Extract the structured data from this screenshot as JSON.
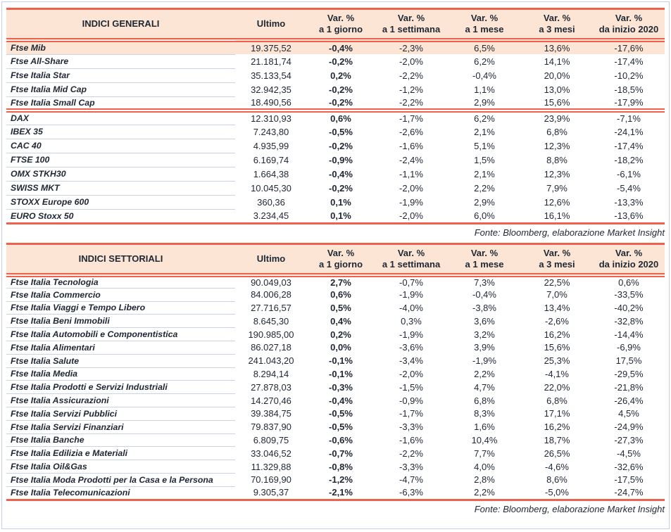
{
  "colors": {
    "accent_salmon": "#EE614C",
    "header_and_highlight_bg": "#FCE5D4",
    "text": "#1E2733",
    "row_divider": "#C9D3E2",
    "panel_border": "#C5D0E8"
  },
  "tables": [
    {
      "title": "INDICI GENERALI",
      "ultimo_label": "Ultimo",
      "var_columns": [
        {
          "line1": "Var. %",
          "line2": "a 1 giorno"
        },
        {
          "line1": "Var. %",
          "line2": "a 1 settimana"
        },
        {
          "line1": "Var. %",
          "line2": "a 1 mese"
        },
        {
          "line1": "Var. %",
          "line2": "a 3 mesi"
        },
        {
          "line1": "Var. %",
          "line2": "da inizio 2020"
        }
      ],
      "groups": [
        {
          "rows": [
            {
              "name": "Ftse Mib",
              "ultimo": "19.375,52",
              "d1": "-0,4%",
              "w1": "-2,3%",
              "m1": "6,5%",
              "m3": "13,6%",
              "ytd": "-17,6%",
              "highlight": true
            },
            {
              "name": "Ftse All-Share",
              "ultimo": "21.181,74",
              "d1": "-0,2%",
              "w1": "-2,0%",
              "m1": "6,2%",
              "m3": "14,1%",
              "ytd": "-17,4%"
            },
            {
              "name": "Ftse Italia Star",
              "ultimo": "35.133,54",
              "d1": "0,2%",
              "w1": "-2,2%",
              "m1": "-0,4%",
              "m3": "20,0%",
              "ytd": "-10,2%"
            },
            {
              "name": "Ftse Italia Mid Cap",
              "ultimo": "32.942,35",
              "d1": "-0,2%",
              "w1": "-1,2%",
              "m1": "1,1%",
              "m3": "13,0%",
              "ytd": "-18,5%"
            },
            {
              "name": "Ftse Italia Small Cap",
              "ultimo": "18.490,56",
              "d1": "-0,2%",
              "w1": "-2,2%",
              "m1": "2,9%",
              "m3": "15,6%",
              "ytd": "-17,9%"
            }
          ]
        },
        {
          "rows": [
            {
              "name": "DAX",
              "ultimo": "12.310,93",
              "d1": "0,6%",
              "w1": "-1,7%",
              "m1": "6,2%",
              "m3": "23,9%",
              "ytd": "-7,1%"
            },
            {
              "name": "IBEX 35",
              "ultimo": "7.243,80",
              "d1": "-0,5%",
              "w1": "-2,6%",
              "m1": "2,1%",
              "m3": "6,8%",
              "ytd": "-24,1%"
            },
            {
              "name": "CAC 40",
              "ultimo": "4.935,99",
              "d1": "-0,2%",
              "w1": "-1,6%",
              "m1": "5,1%",
              "m3": "12,3%",
              "ytd": "-17,4%"
            },
            {
              "name": "FTSE 100",
              "ultimo": "6.169,74",
              "d1": "-0,9%",
              "w1": "-2,4%",
              "m1": "1,5%",
              "m3": "8,8%",
              "ytd": "-18,2%"
            },
            {
              "name": "OMX STKH30",
              "ultimo": "1.664,38",
              "d1": "-0,4%",
              "w1": "-1,1%",
              "m1": "2,1%",
              "m3": "12,3%",
              "ytd": "-6,1%"
            },
            {
              "name": "SWISS MKT",
              "ultimo": "10.045,30",
              "d1": "-0,2%",
              "w1": "-2,0%",
              "m1": "2,2%",
              "m3": "7,9%",
              "ytd": "-5,4%"
            },
            {
              "name": "STOXX Europe 600",
              "ultimo": "360,36",
              "d1": "0,1%",
              "w1": "-1,9%",
              "m1": "2,9%",
              "m3": "12,6%",
              "ytd": "-13,3%"
            },
            {
              "name": "EURO Stoxx 50",
              "ultimo": "3.234,45",
              "d1": "0,1%",
              "w1": "-2,0%",
              "m1": "6,0%",
              "m3": "16,1%",
              "ytd": "-13,6%"
            }
          ]
        }
      ],
      "footer": "Fonte: Bloomberg, elaborazione Market Insight"
    },
    {
      "title": "INDICI SETTORIALI",
      "ultimo_label": "Ultimo",
      "var_columns": [
        {
          "line1": "Var. %",
          "line2": "a 1 giorno"
        },
        {
          "line1": "Var. %",
          "line2": "a 1 settimana"
        },
        {
          "line1": "Var. %",
          "line2": "a 1 mese"
        },
        {
          "line1": "Var. %",
          "line2": "a 3 mesi"
        },
        {
          "line1": "Var. %",
          "line2": "da inizio 2020"
        }
      ],
      "groups": [
        {
          "rows": [
            {
              "name": "Ftse Italia Tecnologia",
              "ultimo": "90.049,03",
              "d1": "2,7%",
              "w1": "-0,7%",
              "m1": "7,3%",
              "m3": "22,5%",
              "ytd": "0,6%"
            },
            {
              "name": "Ftse Italia Commercio",
              "ultimo": "84.006,28",
              "d1": "0,6%",
              "w1": "-1,9%",
              "m1": "-0,4%",
              "m3": "7,0%",
              "ytd": "-33,5%"
            },
            {
              "name": "Ftse Italia Viaggi e Tempo Libero",
              "ultimo": "27.716,57",
              "d1": "0,5%",
              "w1": "-4,0%",
              "m1": "-3,8%",
              "m3": "13,4%",
              "ytd": "-40,2%"
            },
            {
              "name": "Ftse Italia Beni Immobili",
              "ultimo": "8.645,30",
              "d1": "0,4%",
              "w1": "0,3%",
              "m1": "3,6%",
              "m3": "-2,6%",
              "ytd": "-32,8%"
            },
            {
              "name": "Ftse Italia Automobili e Componentistica",
              "ultimo": "190.985,00",
              "d1": "0,2%",
              "w1": "-1,9%",
              "m1": "3,2%",
              "m3": "16,2%",
              "ytd": "-14,4%"
            },
            {
              "name": "Ftse Italia Alimentari",
              "ultimo": "86.027,18",
              "d1": "0,0%",
              "w1": "-3,6%",
              "m1": "3,9%",
              "m3": "15,6%",
              "ytd": "-6,9%"
            },
            {
              "name": "Ftse Italia Salute",
              "ultimo": "241.043,20",
              "d1": "-0,1%",
              "w1": "-3,4%",
              "m1": "-1,9%",
              "m3": "25,3%",
              "ytd": "17,5%"
            },
            {
              "name": "Ftse Italia Media",
              "ultimo": "8.294,14",
              "d1": "-0,1%",
              "w1": "-2,0%",
              "m1": "2,2%",
              "m3": "-4,1%",
              "ytd": "-29,5%"
            },
            {
              "name": "Ftse Italia Prodotti e Servizi Industriali",
              "ultimo": "27.878,03",
              "d1": "-0,3%",
              "w1": "-1,5%",
              "m1": "4,7%",
              "m3": "22,0%",
              "ytd": "-21,8%"
            },
            {
              "name": "Ftse Italia Assicurazioni",
              "ultimo": "14.270,46",
              "d1": "-0,4%",
              "w1": "-0,9%",
              "m1": "6,8%",
              "m3": "6,8%",
              "ytd": "-26,4%"
            },
            {
              "name": "Ftse Italia Servizi Pubblici",
              "ultimo": "39.384,75",
              "d1": "-0,5%",
              "w1": "-1,7%",
              "m1": "8,3%",
              "m3": "17,1%",
              "ytd": "4,5%"
            },
            {
              "name": "Ftse Italia Servizi Finanziari",
              "ultimo": "79.837,90",
              "d1": "-0,5%",
              "w1": "-3,3%",
              "m1": "1,6%",
              "m3": "16,2%",
              "ytd": "-24,9%"
            },
            {
              "name": "Ftse Italia Banche",
              "ultimo": "6.809,75",
              "d1": "-0,6%",
              "w1": "-1,6%",
              "m1": "10,4%",
              "m3": "18,7%",
              "ytd": "-27,3%"
            },
            {
              "name": "Ftse Italia Edilizia e Materiali",
              "ultimo": "33.046,52",
              "d1": "-0,7%",
              "w1": "-2,2%",
              "m1": "7,7%",
              "m3": "26,5%",
              "ytd": "-4,5%"
            },
            {
              "name": "Ftse Italia Oil&Gas",
              "ultimo": "11.329,88",
              "d1": "-0,8%",
              "w1": "-3,3%",
              "m1": "4,0%",
              "m3": "-4,6%",
              "ytd": "-32,6%"
            },
            {
              "name": "Ftse Italia Moda Prodotti per la Casa e la Persona",
              "ultimo": "70.169,90",
              "d1": "-1,2%",
              "w1": "-4,7%",
              "m1": "2,8%",
              "m3": "8,6%",
              "ytd": "-17,5%"
            },
            {
              "name": "Ftse Italia Telecomunicazioni",
              "ultimo": "9.305,37",
              "d1": "-2,1%",
              "w1": "-6,3%",
              "m1": "2,2%",
              "m3": "-5,0%",
              "ytd": "-24,7%"
            }
          ]
        }
      ],
      "footer": "Fonte: Bloomberg, elaborazione Market Insight"
    }
  ]
}
